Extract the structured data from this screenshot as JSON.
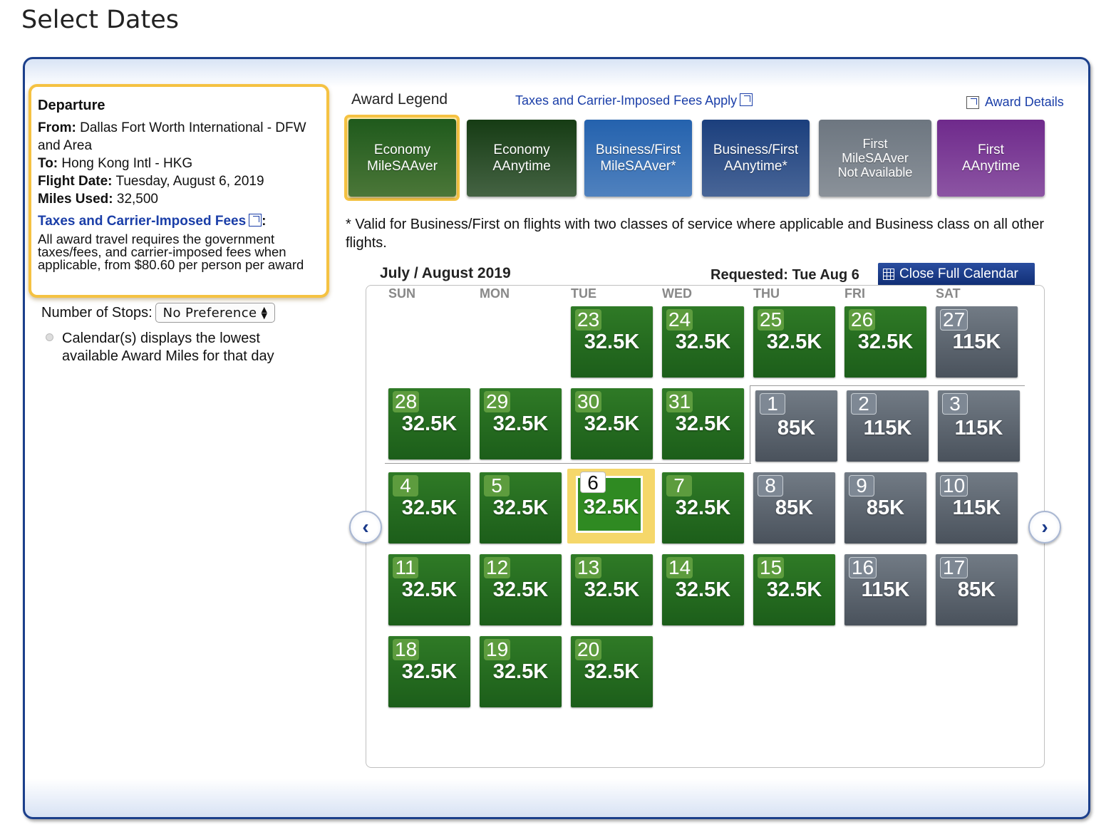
{
  "page": {
    "title": "Select Dates"
  },
  "departure": {
    "heading": "Departure",
    "from_label": "From:",
    "from_value": "Dallas Fort Worth International - DFW and Area",
    "to_label": "To:",
    "to_value": "Hong Kong Intl - HKG",
    "date_label": "Flight Date:",
    "date_value": "Tuesday, August 6, 2019",
    "miles_label": "Miles Used:",
    "miles_value": "32,500",
    "fees_link": "Taxes and Carrier-Imposed Fees",
    "fees_colon": ":",
    "fees_text": "All award travel requires the government taxes/fees, and carrier-imposed fees when applicable, from $80.60 per person per award"
  },
  "stops": {
    "label": "Number of Stops:",
    "selected": "No Preference"
  },
  "note": "Calendar(s) displays the lowest available Award Miles for that day",
  "legend": {
    "label": "Award Legend",
    "taxes_link": "Taxes and Carrier-Imposed Fees Apply",
    "award_details": "Award Details",
    "items": [
      {
        "line1": "Economy",
        "line2": "MileSAAver",
        "color": "#1f5a1c",
        "selected": true
      },
      {
        "line1": "Economy",
        "line2": "AAnytime",
        "color": "#163c14"
      },
      {
        "line1": "Business/First",
        "line2": "MileSAAver*",
        "color": "#2462ae"
      },
      {
        "line1": "Business/First",
        "line2": "AAnytime*",
        "color": "#1b3f7d"
      },
      {
        "line1": "First MileSAAver Not Available",
        "line2": "",
        "color": "#6d7680"
      },
      {
        "line1": "First",
        "line2": "AAnytime",
        "color": "#6f2a8c"
      }
    ],
    "footnote": "* Valid for Business/First on flights with two classes of service where applicable and Business class on all other flights."
  },
  "calendar": {
    "month_label": "July / August 2019",
    "requested": "Requested: Tue Aug 6",
    "close_button": "Close Full Calendar",
    "weekdays": [
      "SUN",
      "MON",
      "TUE",
      "WED",
      "THU",
      "FRI",
      "SAT"
    ],
    "days": [
      {
        "day": "23",
        "miles": "32.5K",
        "type": "green"
      },
      {
        "day": "24",
        "miles": "32.5K",
        "type": "green"
      },
      {
        "day": "25",
        "miles": "32.5K",
        "type": "green"
      },
      {
        "day": "26",
        "miles": "32.5K",
        "type": "green"
      },
      {
        "day": "27",
        "miles": "115K",
        "type": "gray"
      },
      {
        "day": "28",
        "miles": "32.5K",
        "type": "green"
      },
      {
        "day": "29",
        "miles": "32.5K",
        "type": "green"
      },
      {
        "day": "30",
        "miles": "32.5K",
        "type": "green"
      },
      {
        "day": "31",
        "miles": "32.5K",
        "type": "green"
      },
      {
        "day": "1",
        "miles": "85K",
        "type": "gray"
      },
      {
        "day": "2",
        "miles": "115K",
        "type": "gray"
      },
      {
        "day": "3",
        "miles": "115K",
        "type": "gray"
      },
      {
        "day": "4",
        "miles": "32.5K",
        "type": "green"
      },
      {
        "day": "5",
        "miles": "32.5K",
        "type": "green"
      },
      {
        "day": "6",
        "miles": "32.5K",
        "type": "selected"
      },
      {
        "day": "7",
        "miles": "32.5K",
        "type": "green"
      },
      {
        "day": "8",
        "miles": "85K",
        "type": "gray"
      },
      {
        "day": "9",
        "miles": "85K",
        "type": "gray"
      },
      {
        "day": "10",
        "miles": "115K",
        "type": "gray"
      },
      {
        "day": "11",
        "miles": "32.5K",
        "type": "green"
      },
      {
        "day": "12",
        "miles": "32.5K",
        "type": "green"
      },
      {
        "day": "13",
        "miles": "32.5K",
        "type": "green"
      },
      {
        "day": "14",
        "miles": "32.5K",
        "type": "green"
      },
      {
        "day": "15",
        "miles": "32.5K",
        "type": "green"
      },
      {
        "day": "16",
        "miles": "115K",
        "type": "gray"
      },
      {
        "day": "17",
        "miles": "85K",
        "type": "gray"
      },
      {
        "day": "18",
        "miles": "32.5K",
        "type": "green"
      },
      {
        "day": "19",
        "miles": "32.5K",
        "type": "green"
      },
      {
        "day": "20",
        "miles": "32.5K",
        "type": "green"
      }
    ],
    "prev_icon": "chevron-left-icon",
    "next_icon": "chevron-right-icon"
  }
}
